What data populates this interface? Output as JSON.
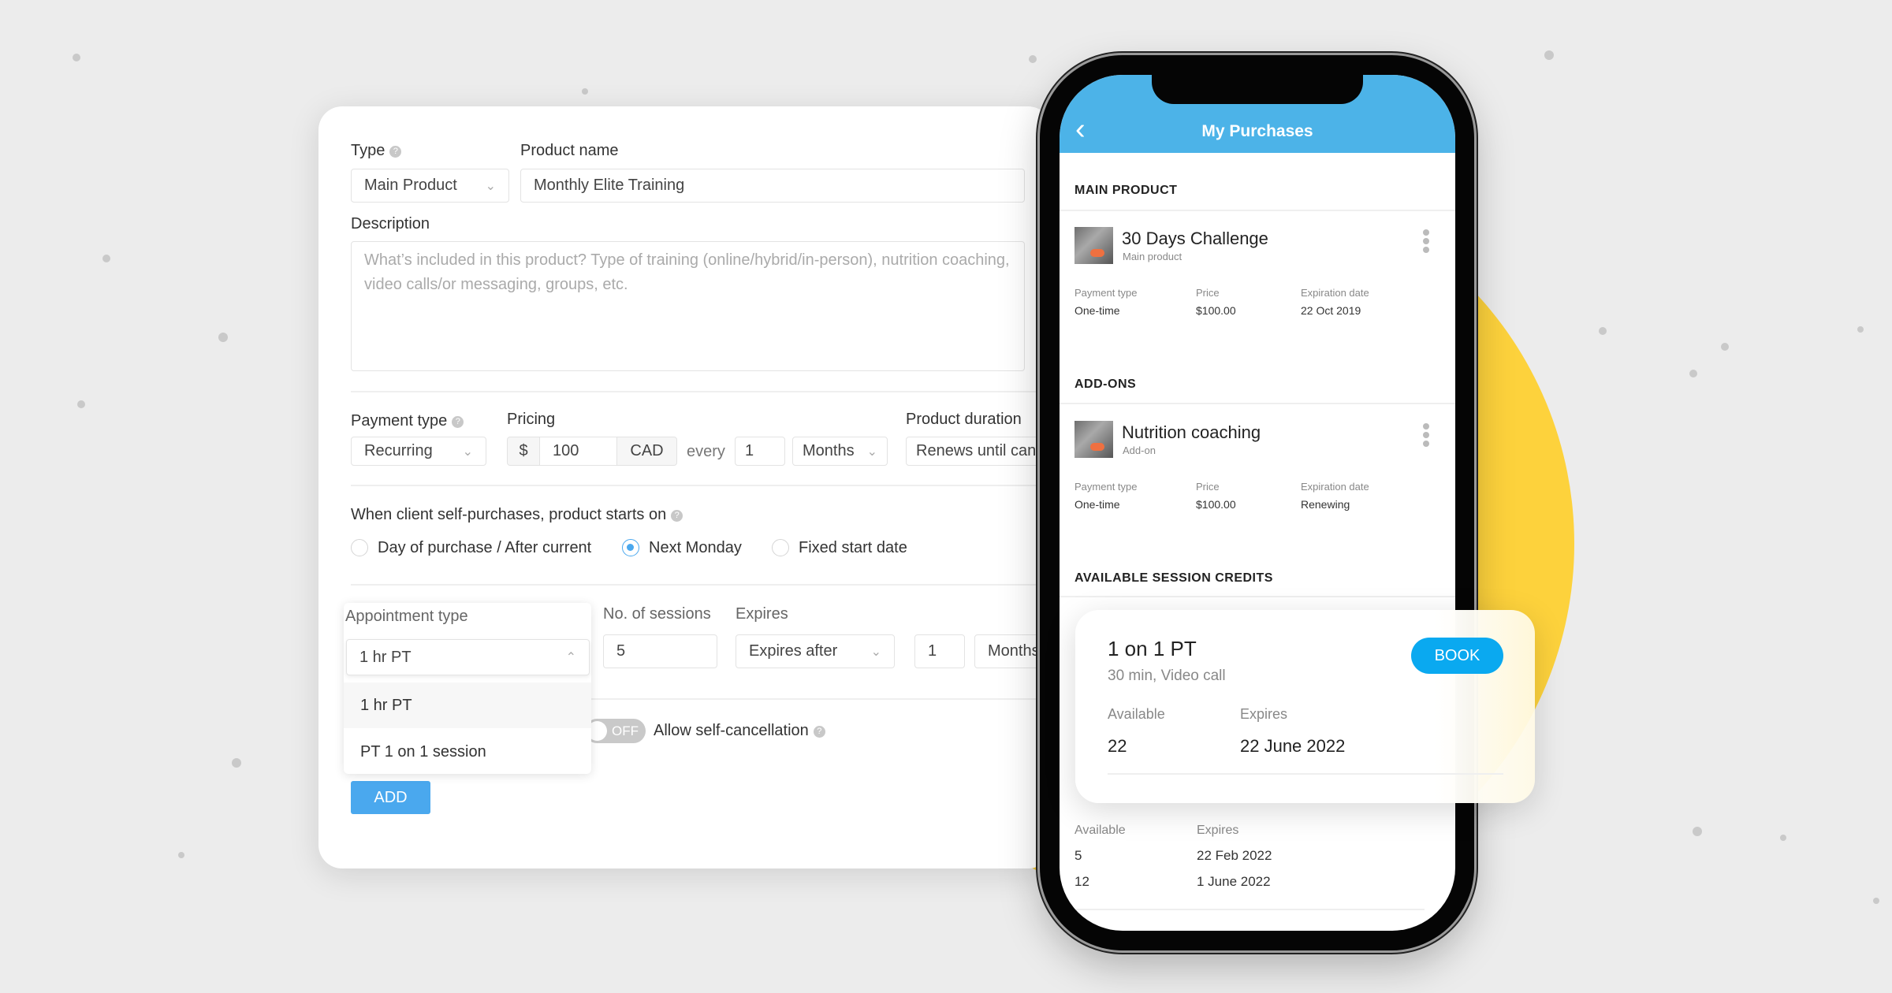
{
  "colors": {
    "accent": "#4aa8ee",
    "header": "#4cb3e8",
    "book": "#0aa9f0",
    "yellow": "#fdd23c",
    "background": "#ececec"
  },
  "form": {
    "type_label": "Type",
    "type_value": "Main Product",
    "product_name_label": "Product name",
    "product_name_value": "Monthly Elite Training",
    "description_label": "Description",
    "description_placeholder": "What’s included in this product? Type of training (online/hybrid/in-person), nutrition coaching, video calls/or messaging, groups, etc.",
    "payment_type_label": "Payment type",
    "payment_type_value": "Recurring",
    "pricing_label": "Pricing",
    "currency_symbol": "$",
    "price_value": "100",
    "currency": "CAD",
    "every_label": "every",
    "interval_value": "1",
    "interval_unit": "Months",
    "duration_label": "Product duration",
    "duration_value": "Renews until cancelled",
    "starts_on_label": "When client self-purchases, product starts on",
    "start_options": [
      {
        "label": "Day of purchase / After current",
        "selected": false
      },
      {
        "label": "Next Monday",
        "selected": true
      },
      {
        "label": "Fixed start date",
        "selected": false
      }
    ],
    "appointment_type_label": "Appointment type",
    "appointment_type_value": "1 hr PT",
    "appointment_options": [
      "1 hr PT",
      "PT 1 on 1 session"
    ],
    "sessions_label": "No. of sessions",
    "sessions_value": "5",
    "expires_label": "Expires",
    "expires_value": "Expires after",
    "expires_count": "1",
    "expires_unit": "Months",
    "toggle_state": "OFF",
    "self_cancel_label": "Allow self-cancellation",
    "add_button": "ADD"
  },
  "phone": {
    "title": "My Purchases",
    "main_product_heading": "MAIN PRODUCT",
    "main_product": {
      "name": "30 Days Challenge",
      "kind": "Main product",
      "payment_type_label": "Payment type",
      "payment_type": "One-time",
      "price_label": "Price",
      "price": "$100.00",
      "expiration_label": "Expiration date",
      "expiration": "22 Oct 2019"
    },
    "addons_heading": "ADD-ONS",
    "addon": {
      "name": "Nutrition coaching",
      "kind": "Add-on",
      "payment_type_label": "Payment type",
      "payment_type": "One-time",
      "price_label": "Price",
      "price": "$100.00",
      "expiration_label": "Expiration date",
      "expiration": "Renewing"
    },
    "credits_heading": "AVAILABLE SESSION CREDITS",
    "credits_table": {
      "available_label": "Available",
      "expires_label": "Expires",
      "rows": [
        {
          "available": "5",
          "expires": "22 Feb 2022"
        },
        {
          "available": "12",
          "expires": "1 June 2022"
        }
      ]
    }
  },
  "credit_card": {
    "title": "1 on 1 PT",
    "subtitle": "30 min, Video call",
    "book": "BOOK",
    "available_label": "Available",
    "available": "22",
    "expires_label": "Expires",
    "expires": "22 June 2022"
  }
}
